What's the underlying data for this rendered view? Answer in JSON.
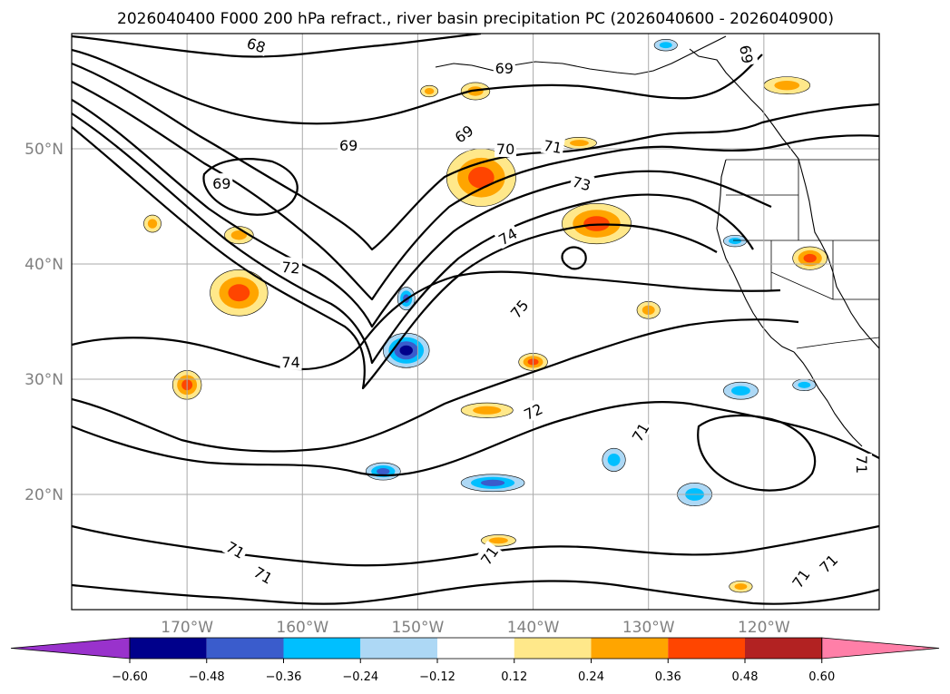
{
  "chart_data": {
    "type": "contour-map",
    "title": "2026040400 F000 200 hPa refract., river basin precipitation PC (2026040600 - 2026040900)",
    "lon_range": [
      180,
      110
    ],
    "lat_range": [
      10,
      60
    ],
    "x_ticks": [
      "170°W",
      "160°W",
      "150°W",
      "140°W",
      "130°W",
      "120°W"
    ],
    "y_ticks": [
      "50°N",
      "40°N",
      "30°N",
      "20°N"
    ],
    "grid": true,
    "contour_levels": [
      68,
      69,
      70,
      71,
      72,
      73,
      74,
      75
    ],
    "contour_labels": [
      {
        "text": "68",
        "lon": -164,
        "lat": 59,
        "rotation": 18
      },
      {
        "text": "69",
        "lon": -142.5,
        "lat": 57,
        "rotation": 0
      },
      {
        "text": "69",
        "lon": -156,
        "lat": 50.3,
        "rotation": 0
      },
      {
        "text": "69",
        "lon": -146,
        "lat": 51.3,
        "rotation": -35
      },
      {
        "text": "69",
        "lon": -167,
        "lat": 47,
        "rotation": 0
      },
      {
        "text": "69",
        "lon": -121.5,
        "lat": 58.2,
        "rotation": 80
      },
      {
        "text": "70",
        "lon": -142.4,
        "lat": 50,
        "rotation": 0
      },
      {
        "text": "71",
        "lon": -138.3,
        "lat": 50.2,
        "rotation": 10
      },
      {
        "text": "72",
        "lon": -161,
        "lat": 39.7,
        "rotation": 5
      },
      {
        "text": "73",
        "lon": -135.8,
        "lat": 47,
        "rotation": 15
      },
      {
        "text": "74",
        "lon": -142.2,
        "lat": 42.4,
        "rotation": -30
      },
      {
        "text": "74",
        "lon": -161,
        "lat": 31.5,
        "rotation": 0
      },
      {
        "text": "75",
        "lon": -141.2,
        "lat": 36.1,
        "rotation": -50
      },
      {
        "text": "72",
        "lon": -140,
        "lat": 27.2,
        "rotation": -25
      },
      {
        "text": "71",
        "lon": -130.7,
        "lat": 25.4,
        "rotation": -60
      },
      {
        "text": "71",
        "lon": -143.8,
        "lat": 14.7,
        "rotation": -55
      },
      {
        "text": "71",
        "lon": -165.8,
        "lat": 15.2,
        "rotation": 30
      },
      {
        "text": "71",
        "lon": -163.4,
        "lat": 13,
        "rotation": 30
      },
      {
        "text": "71",
        "lon": -114.4,
        "lat": 14,
        "rotation": -45
      },
      {
        "text": "71",
        "lon": -116.8,
        "lat": 12.7,
        "rotation": -55
      },
      {
        "text": "71",
        "lon": -111.5,
        "lat": 22.6,
        "rotation": 90
      }
    ],
    "colorbar": {
      "ticks": [
        "−0.60",
        "−0.48",
        "−0.36",
        "−0.24",
        "−0.12",
        "0.12",
        "0.24",
        "0.36",
        "0.48",
        "0.60"
      ],
      "colors": [
        "#9932cc",
        "#00008b",
        "#3a5ccc",
        "#00bfff",
        "#add8f5",
        "#ffffff",
        "#ffe88a",
        "#ffa500",
        "#ff4500",
        "#b22222",
        "#ff7fa8"
      ],
      "extend": "both"
    },
    "shaded_regions": [
      {
        "sign": "positive",
        "level": 2,
        "lon": -165.5,
        "lat": 37.5,
        "w": 5,
        "h": 4
      },
      {
        "sign": "positive",
        "level": 2,
        "lon": -170,
        "lat": 29.5,
        "w": 2.5,
        "h": 2.5
      },
      {
        "sign": "positive",
        "level": 1,
        "lon": -165.5,
        "lat": 42.5,
        "w": 2.5,
        "h": 1.5
      },
      {
        "sign": "positive",
        "level": 1,
        "lon": -173,
        "lat": 43.5,
        "w": 1.5,
        "h": 1.5
      },
      {
        "sign": "positive",
        "level": 2,
        "lon": -144.5,
        "lat": 47.5,
        "w": 6,
        "h": 5
      },
      {
        "sign": "positive",
        "level": 2,
        "lon": -134.5,
        "lat": 43.5,
        "w": 6,
        "h": 3.5
      },
      {
        "sign": "positive",
        "level": 2,
        "lon": -140,
        "lat": 31.5,
        "w": 2.5,
        "h": 1.5
      },
      {
        "sign": "positive",
        "level": 1,
        "lon": -144,
        "lat": 27.3,
        "w": 4.5,
        "h": 1.3
      },
      {
        "sign": "positive",
        "level": 1,
        "lon": -145,
        "lat": 55,
        "w": 2.5,
        "h": 1.5
      },
      {
        "sign": "positive",
        "level": 1,
        "lon": -149,
        "lat": 55,
        "w": 1.5,
        "h": 1
      },
      {
        "sign": "positive",
        "level": 1,
        "lon": -136,
        "lat": 50.5,
        "w": 3,
        "h": 1
      },
      {
        "sign": "positive",
        "level": 1,
        "lon": -130,
        "lat": 36,
        "w": 2,
        "h": 1.5
      },
      {
        "sign": "positive",
        "level": 2,
        "lon": -116,
        "lat": 40.5,
        "w": 3,
        "h": 2
      },
      {
        "sign": "positive",
        "level": 1,
        "lon": -118,
        "lat": 55.5,
        "w": 4,
        "h": 1.5
      },
      {
        "sign": "positive",
        "level": 1,
        "lon": -143,
        "lat": 16,
        "w": 3,
        "h": 1
      },
      {
        "sign": "positive",
        "level": 1,
        "lon": -122,
        "lat": 12,
        "w": 2,
        "h": 1
      },
      {
        "sign": "negative",
        "level": 3,
        "lon": -151,
        "lat": 32.5,
        "w": 4,
        "h": 3
      },
      {
        "sign": "negative",
        "level": 2,
        "lon": -151,
        "lat": 37,
        "w": 1.5,
        "h": 2
      },
      {
        "sign": "negative",
        "level": 2,
        "lon": -143.5,
        "lat": 21,
        "w": 5.5,
        "h": 1.5
      },
      {
        "sign": "negative",
        "level": 2,
        "lon": -153,
        "lat": 22,
        "w": 3,
        "h": 1.5
      },
      {
        "sign": "negative",
        "level": 1,
        "lon": -122,
        "lat": 29,
        "w": 3,
        "h": 1.5
      },
      {
        "sign": "negative",
        "level": 1,
        "lon": -126,
        "lat": 20,
        "w": 3,
        "h": 2
      },
      {
        "sign": "negative",
        "level": 1,
        "lon": -133,
        "lat": 23,
        "w": 2,
        "h": 2
      },
      {
        "sign": "negative",
        "level": 1,
        "lon": -122.5,
        "lat": 42,
        "w": 2,
        "h": 1
      },
      {
        "sign": "negative",
        "level": 1,
        "lon": -128.5,
        "lat": 59,
        "w": 2,
        "h": 1
      },
      {
        "sign": "negative",
        "level": 1,
        "lon": -116.5,
        "lat": 29.5,
        "w": 2,
        "h": 1
      }
    ]
  }
}
